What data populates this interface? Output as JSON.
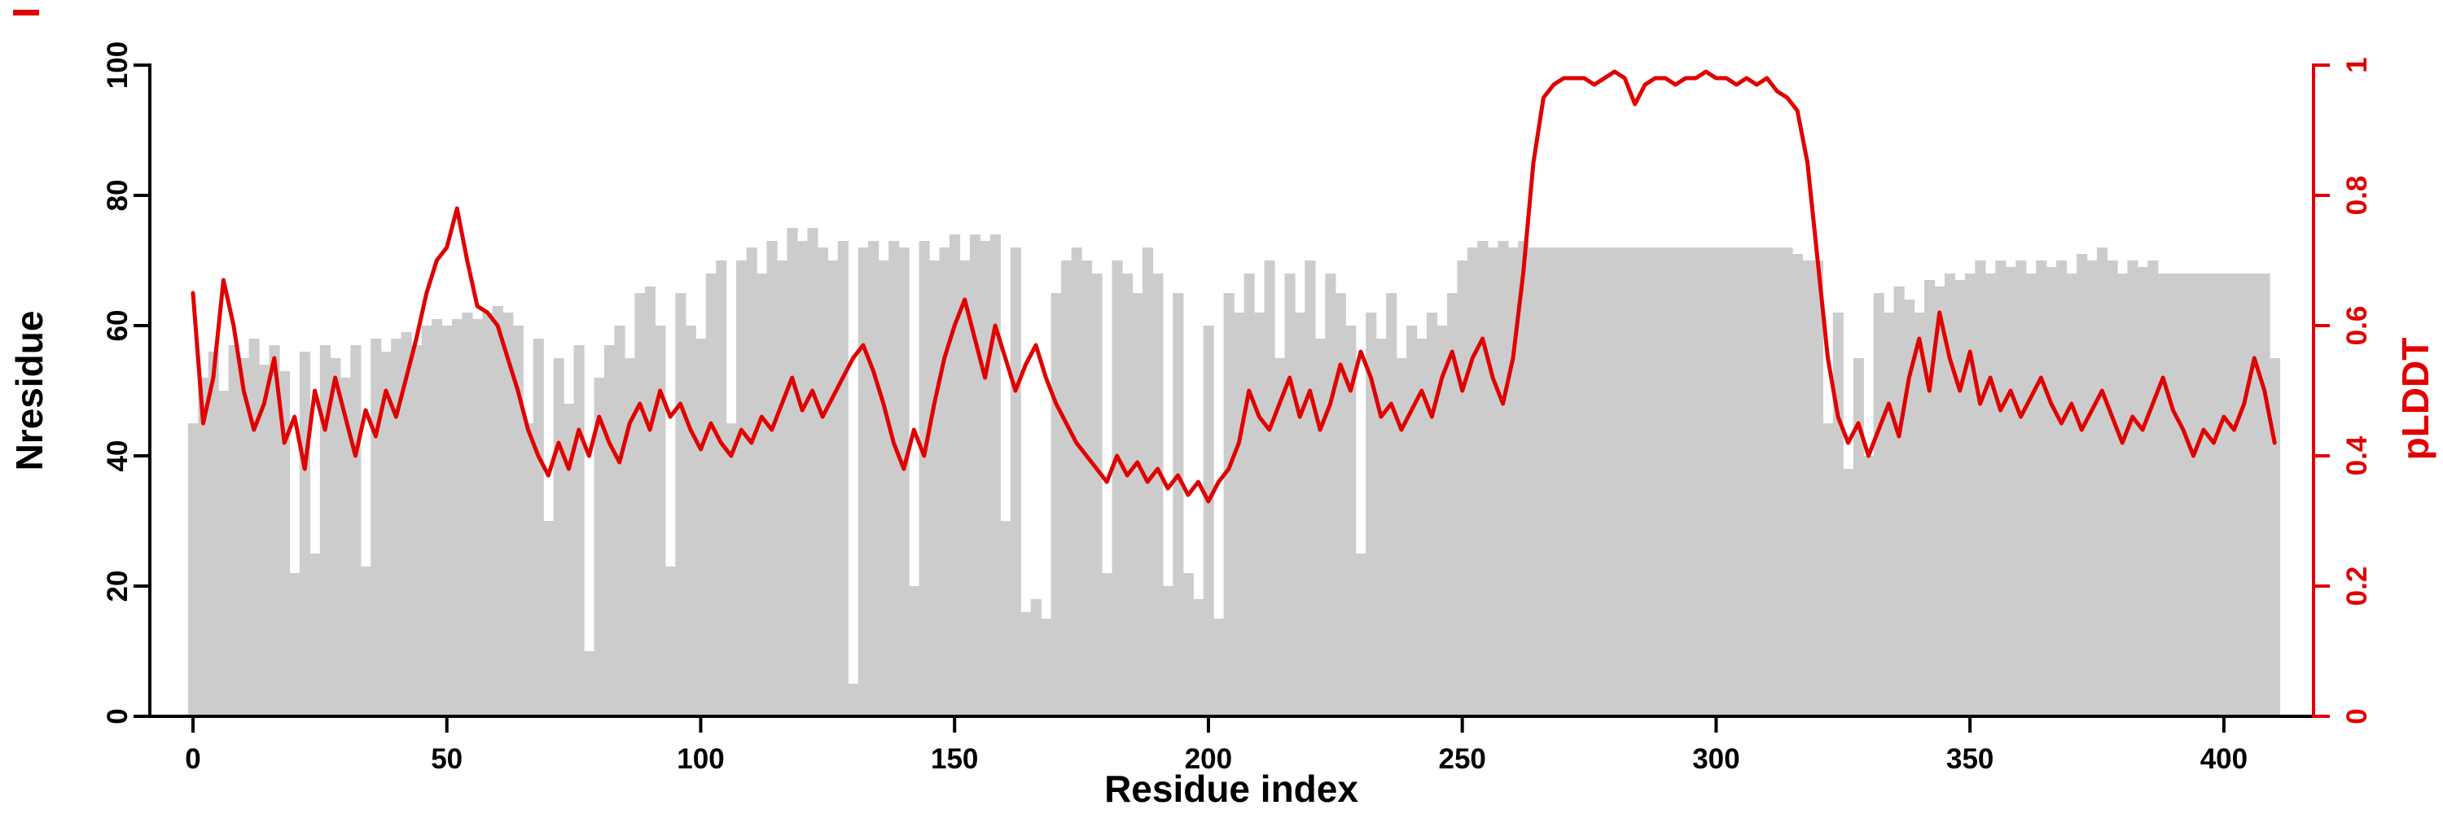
{
  "chart_data": {
    "type": "bar",
    "subtype": "dual-axis bar+line",
    "title": "",
    "xlabel": "Residue index",
    "ylabel_left": "Nresidue",
    "ylabel_right": "pLDDT",
    "x_start": 0,
    "x_step": 2,
    "x_ticks": [
      0,
      50,
      100,
      150,
      200,
      250,
      300,
      350,
      400
    ],
    "x_range": [
      0,
      412
    ],
    "y_left_ticks": [
      0,
      20,
      40,
      60,
      80,
      100
    ],
    "y_left_range": [
      0,
      100
    ],
    "y_right_ticks": [
      "0",
      "0.2",
      "0.4",
      "0.6",
      "0.8",
      "1"
    ],
    "y_right_range": [
      0,
      1
    ],
    "grid": false,
    "legend": null,
    "colors": {
      "bar": "#cccccc",
      "line": "#e00000",
      "axis_left": "#000000",
      "axis_right": "#e00000"
    },
    "series": [
      {
        "name": "Nresidue",
        "type": "bar",
        "axis": "left",
        "color": "#cccccc",
        "values": [
          45,
          52,
          56,
          50,
          57,
          55,
          58,
          54,
          57,
          53,
          22,
          56,
          25,
          57,
          55,
          52,
          57,
          23,
          58,
          56,
          58,
          59,
          57,
          60,
          61,
          60,
          61,
          62,
          61,
          62,
          63,
          62,
          60,
          45,
          58,
          30,
          55,
          48,
          57,
          10,
          52,
          57,
          60,
          55,
          65,
          66,
          60,
          23,
          65,
          60,
          58,
          68,
          70,
          45,
          70,
          72,
          68,
          73,
          70,
          75,
          73,
          75,
          72,
          70,
          73,
          5,
          72,
          73,
          70,
          73,
          72,
          20,
          73,
          70,
          72,
          74,
          70,
          74,
          73,
          74,
          30,
          72,
          16,
          18,
          15,
          65,
          70,
          72,
          70,
          68,
          22,
          70,
          68,
          65,
          72,
          68,
          20,
          65,
          22,
          18,
          60,
          15,
          65,
          62,
          68,
          62,
          70,
          55,
          68,
          62,
          70,
          58,
          68,
          65,
          60,
          25,
          62,
          58,
          65,
          55,
          60,
          58,
          62,
          60,
          65,
          70,
          72,
          73,
          72,
          73,
          72,
          73,
          72,
          72,
          72,
          72,
          72,
          72,
          72,
          72,
          72,
          72,
          72,
          72,
          72,
          72,
          72,
          72,
          72,
          72,
          72,
          72,
          72,
          72,
          72,
          72,
          72,
          72,
          71,
          70,
          70,
          45,
          62,
          38,
          55,
          40,
          65,
          62,
          66,
          64,
          62,
          67,
          66,
          68,
          67,
          68,
          70,
          68,
          70,
          69,
          70,
          68,
          70,
          69,
          70,
          68,
          71,
          70,
          72,
          70,
          68,
          70,
          69,
          70,
          68,
          68,
          68,
          68,
          68,
          68,
          68,
          68,
          68,
          68,
          68,
          55
        ]
      },
      {
        "name": "pLDDT",
        "type": "line",
        "axis": "right",
        "color": "#e00000",
        "values": [
          0.65,
          0.45,
          0.52,
          0.67,
          0.6,
          0.5,
          0.44,
          0.48,
          0.55,
          0.42,
          0.46,
          0.38,
          0.5,
          0.44,
          0.52,
          0.46,
          0.4,
          0.47,
          0.43,
          0.5,
          0.46,
          0.52,
          0.58,
          0.65,
          0.7,
          0.72,
          0.78,
          0.7,
          0.63,
          0.62,
          0.6,
          0.55,
          0.5,
          0.44,
          0.4,
          0.37,
          0.42,
          0.38,
          0.44,
          0.4,
          0.46,
          0.42,
          0.39,
          0.45,
          0.48,
          0.44,
          0.5,
          0.46,
          0.48,
          0.44,
          0.41,
          0.45,
          0.42,
          0.4,
          0.44,
          0.42,
          0.46,
          0.44,
          0.48,
          0.52,
          0.47,
          0.5,
          0.46,
          0.49,
          0.52,
          0.55,
          0.57,
          0.53,
          0.48,
          0.42,
          0.38,
          0.44,
          0.4,
          0.48,
          0.55,
          0.6,
          0.64,
          0.58,
          0.52,
          0.6,
          0.55,
          0.5,
          0.54,
          0.57,
          0.52,
          0.48,
          0.45,
          0.42,
          0.4,
          0.38,
          0.36,
          0.4,
          0.37,
          0.39,
          0.36,
          0.38,
          0.35,
          0.37,
          0.34,
          0.36,
          0.33,
          0.36,
          0.38,
          0.42,
          0.5,
          0.46,
          0.44,
          0.48,
          0.52,
          0.46,
          0.5,
          0.44,
          0.48,
          0.54,
          0.5,
          0.56,
          0.52,
          0.46,
          0.48,
          0.44,
          0.47,
          0.5,
          0.46,
          0.52,
          0.56,
          0.5,
          0.55,
          0.58,
          0.52,
          0.48,
          0.55,
          0.68,
          0.85,
          0.95,
          0.97,
          0.98,
          0.98,
          0.98,
          0.97,
          0.98,
          0.99,
          0.98,
          0.94,
          0.97,
          0.98,
          0.98,
          0.97,
          0.98,
          0.98,
          0.99,
          0.98,
          0.98,
          0.97,
          0.98,
          0.97,
          0.98,
          0.96,
          0.95,
          0.93,
          0.85,
          0.7,
          0.55,
          0.46,
          0.42,
          0.45,
          0.4,
          0.44,
          0.48,
          0.43,
          0.52,
          0.58,
          0.5,
          0.62,
          0.55,
          0.5,
          0.56,
          0.48,
          0.52,
          0.47,
          0.5,
          0.46,
          0.49,
          0.52,
          0.48,
          0.45,
          0.48,
          0.44,
          0.47,
          0.5,
          0.46,
          0.42,
          0.46,
          0.44,
          0.48,
          0.52,
          0.47,
          0.44,
          0.4,
          0.44,
          0.42,
          0.46,
          0.44,
          0.48,
          0.55,
          0.5,
          0.42
        ]
      }
    ]
  }
}
